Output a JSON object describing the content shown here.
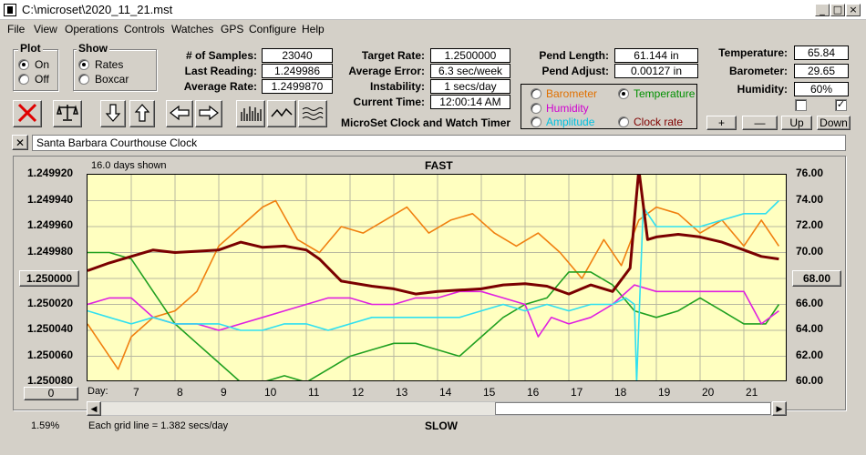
{
  "window": {
    "title": "C:\\microset\\2020_11_21.mst"
  },
  "menu": [
    "File",
    "View",
    "Operations",
    "Controls",
    "Watches",
    "GPS",
    "Configure",
    "Help"
  ],
  "plot_group": {
    "title": "Plot",
    "options": [
      "On",
      "Off"
    ],
    "selected": "On"
  },
  "show_group": {
    "title": "Show",
    "options": [
      "Rates",
      "Boxcar"
    ],
    "selected": "Rates"
  },
  "stats": {
    "samples_label": "# of Samples:",
    "samples": "23040",
    "last_reading_label": "Last Reading:",
    "last_reading": "1.249986",
    "average_rate_label": "Average Rate:",
    "average_rate": "1.2499870",
    "target_rate_label": "Target Rate:",
    "target_rate": "1.2500000",
    "average_error_label": "Average Error:",
    "average_error": "6.3 sec/week",
    "instability_label": "Instability:",
    "instability": "1 secs/day",
    "current_time_label": "Current Time:",
    "current_time": "12:00:14 AM",
    "pend_length_label": "Pend Length:",
    "pend_length": "61.144 in",
    "pend_adjust_label": "Pend Adjust:",
    "pend_adjust": "0.00127 in",
    "temperature_label": "Temperature:",
    "temperature": "65.84",
    "barometer_label": "Barometer:",
    "barometer": "29.65",
    "humidity_label": "Humidity:",
    "humidity": "60%"
  },
  "app_caption": "MicroSet Clock and Watch Timer",
  "overlay_options": [
    {
      "label": "Barometer",
      "color": "#e07000",
      "selected": false
    },
    {
      "label": "Temperature",
      "color": "#009000",
      "selected": true
    },
    {
      "label": "Humidity",
      "color": "#e000e0",
      "selected": false
    },
    {
      "label": "Amplitude",
      "color": "#00c8e0",
      "selected": false
    },
    {
      "label": "Clock rate",
      "color": "#800000",
      "selected": false
    }
  ],
  "scale_buttons": {
    "plus": "+",
    "minus": "—",
    "up": "Up",
    "down": "Down"
  },
  "clock_name": "Santa Barbara Courthouse Clock",
  "chart_header": {
    "days_shown": "16.0 days shown",
    "fast": "FAST",
    "slow": "SLOW",
    "grid_note": "Each grid line = 1.382 secs/day",
    "day_label": "Day:",
    "percent": "1.59%",
    "center_rate": "1.250000",
    "center_temp": "68.00",
    "offset_button": "0"
  },
  "colors": {
    "plot_bg": "#ffffc0",
    "rate": "#7a0000",
    "barometer": "#f08010",
    "temperature": "#20a020",
    "humidity": "#e020e0",
    "amplitude": "#30e0f0"
  },
  "chart_data": {
    "type": "line",
    "x_label": "Day:",
    "x_range": [
      6.0,
      22.0
    ],
    "x_ticks": [
      7,
      8,
      9,
      10,
      11,
      12,
      13,
      14,
      15,
      16,
      17,
      18,
      19,
      20,
      21
    ],
    "y_left_ticks": [
      "1.249920",
      "1.249940",
      "1.249960",
      "1.249980",
      "1.250000",
      "1.250020",
      "1.250040",
      "1.250060",
      "1.250080"
    ],
    "y_left_range": [
      1.24992,
      1.25008
    ],
    "y_left_inverted": true,
    "y_right_ticks": [
      "76.00",
      "74.00",
      "72.00",
      "70.00",
      "68.00",
      "66.00",
      "64.00",
      "62.00",
      "60.00"
    ],
    "y_right_range": [
      60,
      76
    ],
    "grid": true,
    "series": [
      {
        "name": "Clock rate",
        "axis": "left",
        "color": "#7a0000",
        "x": [
          6.0,
          6.5,
          7.0,
          7.5,
          8.0,
          8.5,
          9.0,
          9.5,
          10.0,
          10.5,
          11.0,
          11.3,
          11.8,
          12.5,
          13.0,
          13.5,
          14.0,
          14.5,
          15.0,
          15.5,
          16.0,
          16.5,
          17.0,
          17.5,
          18.0,
          18.4,
          18.6,
          18.8,
          19.0,
          19.5,
          20.0,
          20.5,
          21.0,
          21.4,
          21.8
        ],
        "y": [
          1.249994,
          1.249988,
          1.249983,
          1.249978,
          1.24998,
          1.249979,
          1.249978,
          1.249972,
          1.249976,
          1.249975,
          1.249978,
          1.249985,
          1.250002,
          1.250006,
          1.250008,
          1.250012,
          1.25001,
          1.250009,
          1.250008,
          1.250005,
          1.250004,
          1.250006,
          1.250012,
          1.250005,
          1.25001,
          1.249992,
          1.249916,
          1.24997,
          1.249968,
          1.249966,
          1.249968,
          1.249972,
          1.249978,
          1.249983,
          1.249985
        ]
      },
      {
        "name": "Barometer",
        "axis": "right",
        "color": "#f08010",
        "x": [
          6.0,
          6.3,
          6.7,
          7.0,
          7.5,
          8.0,
          8.5,
          9.0,
          9.5,
          10.0,
          10.3,
          10.8,
          11.3,
          11.8,
          12.3,
          12.8,
          13.3,
          13.8,
          14.3,
          14.8,
          15.3,
          15.8,
          16.3,
          16.8,
          17.3,
          17.8,
          18.2,
          18.6,
          19.0,
          19.5,
          20.0,
          20.5,
          21.0,
          21.4,
          21.8
        ],
        "y": [
          64.5,
          63.0,
          61.0,
          63.5,
          65.0,
          65.5,
          67.0,
          70.5,
          72.0,
          73.5,
          74.0,
          71.0,
          70.0,
          72.0,
          71.5,
          72.5,
          73.5,
          71.5,
          72.5,
          73.0,
          71.5,
          70.5,
          71.5,
          70.0,
          68.0,
          71.0,
          69.0,
          72.5,
          73.5,
          73.0,
          71.5,
          72.5,
          70.5,
          72.5,
          70.5
        ]
      },
      {
        "name": "Temperature",
        "axis": "right",
        "color": "#20a020",
        "x": [
          6.0,
          6.5,
          7.0,
          7.5,
          8.0,
          8.5,
          9.0,
          9.5,
          10.0,
          10.5,
          11.0,
          11.5,
          12.0,
          12.5,
          13.0,
          13.5,
          14.0,
          14.5,
          15.0,
          15.5,
          16.0,
          16.5,
          17.0,
          17.5,
          18.0,
          18.5,
          19.0,
          19.5,
          20.0,
          20.5,
          21.0,
          21.5,
          21.8
        ],
        "y": [
          70.0,
          70.0,
          69.5,
          67.0,
          64.5,
          63.0,
          61.5,
          60.0,
          60.0,
          60.5,
          60.0,
          61.0,
          62.0,
          62.5,
          63.0,
          63.0,
          62.5,
          62.0,
          63.5,
          65.0,
          66.0,
          66.5,
          68.5,
          68.5,
          67.5,
          65.5,
          65.0,
          65.5,
          66.5,
          65.5,
          64.5,
          64.5,
          66.0
        ]
      },
      {
        "name": "Humidity",
        "axis": "right",
        "color": "#e020e0",
        "x": [
          6.0,
          6.5,
          7.0,
          7.5,
          8.0,
          8.5,
          9.0,
          9.5,
          10.0,
          10.5,
          11.0,
          11.5,
          12.0,
          12.5,
          13.0,
          13.5,
          14.0,
          14.5,
          15.0,
          15.5,
          16.0,
          16.3,
          16.6,
          17.0,
          17.5,
          18.0,
          18.5,
          19.0,
          19.5,
          20.0,
          20.5,
          21.0,
          21.4,
          21.8
        ],
        "y": [
          66.0,
          66.5,
          66.5,
          65.0,
          64.5,
          64.5,
          64.0,
          64.5,
          65.0,
          65.5,
          66.0,
          66.5,
          66.5,
          66.0,
          66.0,
          66.5,
          66.5,
          67.0,
          67.0,
          66.5,
          66.0,
          63.5,
          65.0,
          64.5,
          65.0,
          66.0,
          67.5,
          67.0,
          67.0,
          67.0,
          67.0,
          67.0,
          64.5,
          65.5
        ]
      },
      {
        "name": "Amplitude",
        "axis": "right",
        "color": "#30e0f0",
        "x": [
          6.0,
          6.5,
          7.0,
          7.5,
          8.0,
          8.5,
          9.0,
          9.5,
          10.0,
          10.5,
          11.0,
          11.5,
          12.0,
          12.5,
          13.0,
          13.5,
          14.0,
          14.5,
          15.0,
          15.5,
          16.0,
          16.5,
          17.0,
          17.5,
          18.0,
          18.3,
          18.5,
          18.55,
          18.7,
          19.0,
          19.5,
          20.0,
          20.5,
          21.0,
          21.5,
          21.8
        ],
        "y": [
          65.5,
          65.0,
          64.5,
          65.0,
          64.5,
          64.5,
          64.5,
          64.0,
          64.0,
          64.5,
          64.5,
          64.0,
          64.5,
          65.0,
          65.0,
          65.0,
          65.0,
          65.0,
          65.5,
          66.0,
          65.5,
          66.0,
          65.5,
          66.0,
          66.0,
          66.5,
          66.0,
          60.0,
          73.5,
          72.0,
          72.0,
          72.0,
          72.5,
          73.0,
          73.0,
          74.0
        ]
      }
    ]
  }
}
